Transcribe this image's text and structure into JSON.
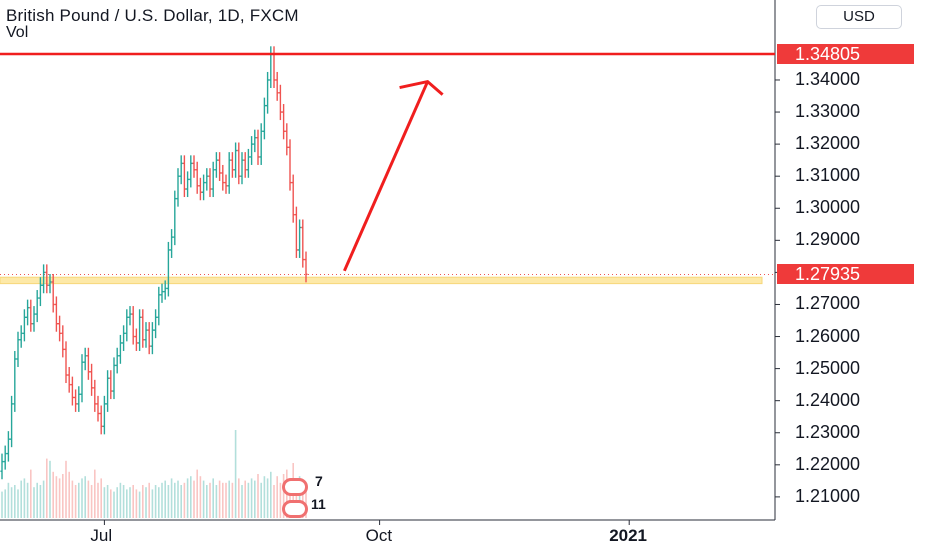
{
  "header": {
    "title": "British Pound / U.S. Dollar, 1D, FXCM",
    "volume_label": "Vol",
    "currency_button": "USD"
  },
  "price_badges": {
    "high": "1.34805",
    "current": "1.27935"
  },
  "events": [
    {
      "name": "uk-flag-icon",
      "count": "7"
    },
    {
      "name": "us-flag-icon",
      "count": "11"
    }
  ],
  "chart_data": {
    "type": "candlestick",
    "symbol": "GBPUSD",
    "interval": "1D",
    "y_axis": {
      "min": 1.2,
      "max": 1.35,
      "ticks": [
        "1.21000",
        "1.22000",
        "1.23000",
        "1.24000",
        "1.25000",
        "1.26000",
        "1.27000",
        "1.28000",
        "1.29000",
        "1.30000",
        "1.31000",
        "1.32000",
        "1.33000",
        "1.34000"
      ]
    },
    "x_axis": {
      "ticks": [
        {
          "label": "Jul",
          "bar": 32,
          "bold": false
        },
        {
          "label": "Oct",
          "bar": 118,
          "bold": false
        },
        {
          "label": "2021",
          "bar": 196,
          "bold": true
        }
      ]
    },
    "colors": {
      "up": "#26a69a",
      "down": "#ef5350",
      "volume_up": "#b2dfdb",
      "volume_down": "#f9c5c3",
      "annotation": "#f01e1e",
      "zone": "#fde9a8"
    },
    "annotations": {
      "resistance_line": 1.3481,
      "support_zone": [
        1.2765,
        1.2785
      ],
      "arrow_from": {
        "bar": 107,
        "price": 1.2805
      },
      "arrow_to": {
        "bar": 133,
        "price": 1.3395
      }
    },
    "closes": [
      1.221,
      1.2235,
      1.228,
      1.239,
      1.253,
      1.259,
      1.261,
      1.266,
      1.269,
      1.264,
      1.267,
      1.272,
      1.276,
      1.28,
      1.276,
      1.277,
      1.27,
      1.264,
      1.261,
      1.256,
      1.248,
      1.245,
      1.241,
      1.239,
      1.242,
      1.252,
      1.254,
      1.249,
      1.244,
      1.239,
      1.236,
      1.232,
      1.239,
      1.247,
      1.243,
      1.251,
      1.254,
      1.258,
      1.261,
      1.266,
      1.267,
      1.26,
      1.258,
      1.266,
      1.259,
      1.262,
      1.257,
      1.262,
      1.266,
      1.273,
      1.274,
      1.275,
      1.287,
      1.291,
      1.303,
      1.31,
      1.314,
      1.306,
      1.309,
      1.314,
      1.312,
      1.307,
      1.305,
      1.308,
      1.31,
      1.306,
      1.312,
      1.315,
      1.311,
      1.308,
      1.307,
      1.315,
      1.312,
      1.318,
      1.31,
      1.315,
      1.312,
      1.316,
      1.32,
      1.322,
      1.316,
      1.324,
      1.332,
      1.34,
      1.348,
      1.34,
      1.336,
      1.33,
      1.324,
      1.319,
      1.308,
      1.298,
      1.287,
      1.294,
      1.284,
      1.2794
    ],
    "volumes": [
      1.2,
      1.3,
      1.6,
      1.4,
      1.5,
      1.3,
      1.7,
      1.8,
      1.6,
      2.2,
      1.4,
      1.6,
      1.5,
      1.7,
      2.7,
      2.6,
      2.1,
      1.9,
      1.8,
      2.0,
      2.6,
      2.1,
      1.7,
      1.5,
      1.6,
      1.8,
      1.9,
      1.7,
      1.5,
      2.2,
      1.6,
      1.8,
      1.4,
      1.5,
      1.3,
      1.2,
      1.4,
      1.6,
      1.5,
      1.3,
      1.4,
      1.5,
      1.3,
      1.2,
      1.5,
      1.4,
      1.6,
      1.3,
      1.5,
      1.4,
      1.6,
      1.7,
      1.5,
      1.8,
      1.6,
      1.7,
      1.5,
      1.6,
      1.8,
      1.9,
      1.7,
      2.2,
      1.9,
      1.7,
      1.5,
      1.6,
      1.8,
      1.5,
      1.7,
      1.6,
      1.6,
      1.7,
      1.6,
      4.0,
      1.8,
      1.5,
      1.7,
      1.6,
      1.8,
      1.7,
      2.0,
      1.6,
      1.9,
      1.8,
      2.1,
      1.5,
      1.9,
      1.6,
      2.0,
      2.2,
      1.8,
      2.5,
      1.7,
      1.9,
      1.6,
      1.5
    ]
  }
}
